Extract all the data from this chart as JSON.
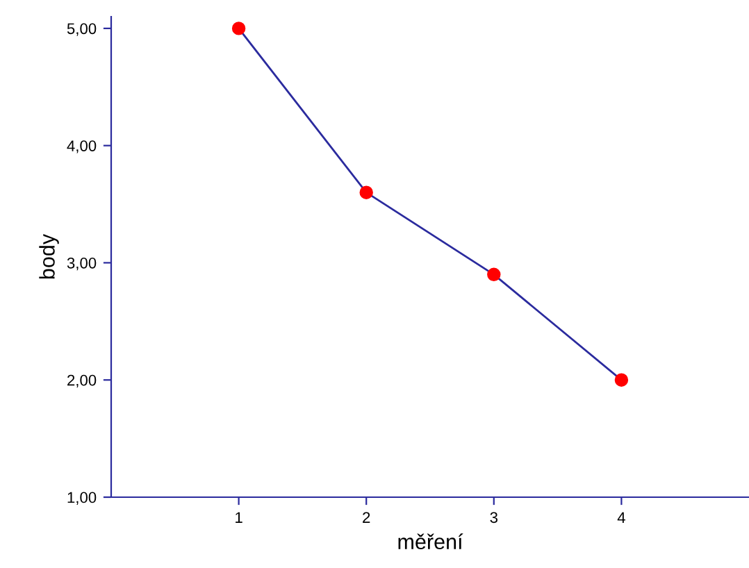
{
  "chart_data": {
    "type": "line",
    "xlabel": "měření",
    "ylabel": "body",
    "x": [
      1,
      2,
      3,
      4
    ],
    "series": [
      {
        "color": "#2b2b9e",
        "colors": [
          "#ff0000",
          "#ff0000",
          "#ff0000",
          "#ff0000"
        ],
        "values": [
          5.0,
          3.6,
          2.9,
          2.0
        ]
      }
    ],
    "marker": "circle",
    "line_style": "solid",
    "xlim": [
      0,
      5
    ],
    "xticks": [
      1,
      2,
      3,
      4
    ],
    "ylim": [
      1,
      5.1
    ],
    "yticks": [
      {
        "value": 1,
        "label": "1,00"
      },
      {
        "value": 2,
        "label": "2,00"
      },
      {
        "value": 3,
        "label": "3,00"
      },
      {
        "value": 4,
        "label": "4,00"
      },
      {
        "value": 5,
        "label": "5,00"
      }
    ],
    "grid": false,
    "legend": false
  }
}
